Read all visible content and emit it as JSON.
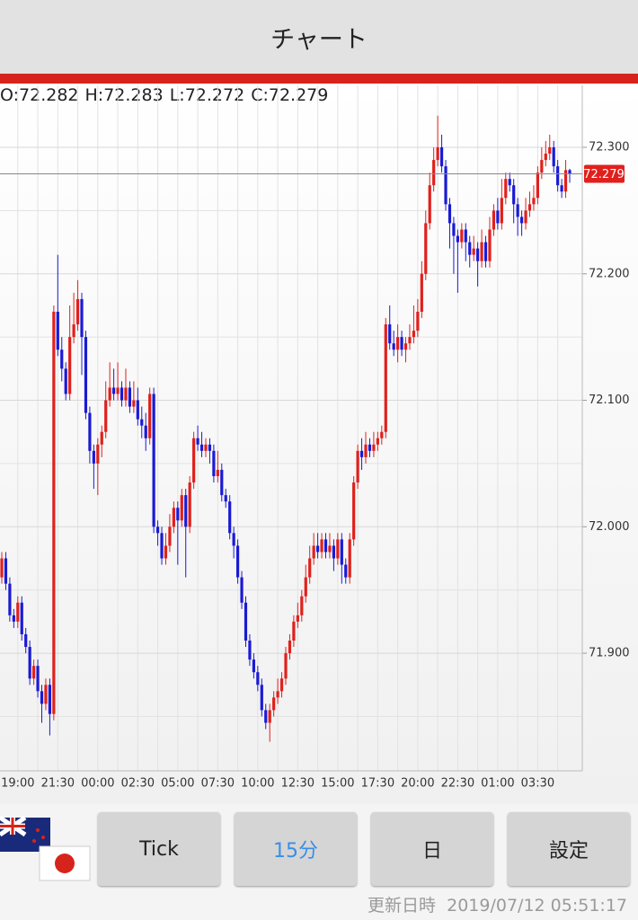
{
  "header": {
    "title": "チャート"
  },
  "chart_data": {
    "type": "candlestick",
    "ohlc_labels": [
      "O:",
      "H:",
      "L:",
      "C:"
    ],
    "up_color": "#e0201c",
    "down_color": "#1a1ad6",
    "categories": [
      null,
      null,
      null,
      null,
      "19:00",
      null,
      null,
      null,
      null,
      null,
      null,
      null,
      null,
      null,
      "21:30",
      null,
      null,
      null,
      null,
      null,
      null,
      null,
      null,
      null,
      "00:00",
      null,
      null,
      null,
      null,
      null,
      null,
      null,
      null,
      null,
      "02:30",
      null,
      null,
      null,
      null,
      null,
      null,
      null,
      null,
      null,
      "05:00",
      null,
      null,
      null,
      null,
      null,
      null,
      null,
      null,
      null,
      "07:30",
      null,
      null,
      null,
      null,
      null,
      null,
      null,
      null,
      null,
      "10:00",
      null,
      null,
      null,
      null,
      null,
      null,
      null,
      null,
      null,
      "12:30",
      null,
      null,
      null,
      null,
      null,
      null,
      null,
      null,
      null,
      "15:00",
      null,
      null,
      null,
      null,
      null,
      null,
      null,
      null,
      null,
      "17:30",
      null,
      null,
      null,
      null,
      null,
      null,
      null,
      null,
      null,
      "20:00",
      null,
      null,
      null,
      null,
      null,
      null,
      null,
      null,
      null,
      "22:30",
      null,
      null,
      null,
      null,
      null,
      null,
      null,
      null,
      null,
      "01:00",
      null,
      null,
      null,
      null,
      null,
      null,
      null,
      null,
      null,
      "03:30",
      null,
      null,
      null,
      null,
      null,
      null,
      null,
      null
    ],
    "open": [
      71.96,
      71.975,
      71.955,
      71.93,
      71.925,
      71.94,
      71.915,
      71.905,
      71.88,
      71.89,
      71.87,
      71.86,
      71.875,
      71.852,
      72.17,
      72.14,
      72.125,
      72.105,
      72.15,
      72.16,
      72.18,
      72.15,
      72.09,
      72.06,
      72.05,
      72.065,
      72.075,
      72.1,
      72.11,
      72.105,
      72.11,
      72.1,
      72.11,
      72.095,
      72.1,
      72.085,
      72.08,
      72.07,
      72.105,
      72.0,
      71.995,
      71.975,
      71.985,
      72.0,
      72.015,
      72.005,
      72.025,
      72.0,
      72.035,
      72.07,
      72.065,
      72.06,
      72.065,
      72.06,
      72.04,
      72.045,
      72.025,
      72.02,
      71.995,
      71.985,
      71.96,
      71.94,
      71.91,
      71.895,
      71.885,
      71.875,
      71.855,
      71.845,
      71.855,
      71.865,
      71.87,
      71.88,
      71.9,
      71.91,
      71.925,
      71.93,
      71.945,
      71.96,
      71.975,
      71.985,
      71.98,
      71.99,
      71.98,
      71.985,
      71.975,
      71.99,
      71.97,
      71.96,
      71.99,
      72.035,
      72.06,
      72.055,
      72.065,
      72.06,
      72.065,
      72.07,
      72.075,
      72.16,
      72.145,
      72.14,
      72.15,
      72.14,
      72.145,
      72.15,
      72.155,
      72.17,
      72.2,
      72.24,
      72.27,
      72.29,
      72.3,
      72.285,
      72.255,
      72.24,
      72.23,
      72.225,
      72.235,
      72.225,
      72.215,
      72.22,
      72.21,
      72.225,
      72.21,
      72.235,
      72.25,
      72.24,
      72.26,
      72.275,
      72.27,
      72.255,
      72.245,
      72.24,
      72.25,
      72.255,
      72.26,
      72.28,
      72.29,
      72.295,
      72.3,
      72.285,
      72.27,
      72.265,
      72.282
    ],
    "high": [
      71.98,
      71.98,
      71.96,
      71.935,
      71.945,
      71.945,
      71.92,
      71.91,
      71.895,
      71.895,
      71.875,
      71.88,
      71.88,
      72.175,
      72.215,
      72.15,
      72.13,
      72.175,
      72.185,
      72.195,
      72.185,
      72.155,
      72.095,
      72.065,
      72.07,
      72.08,
      72.115,
      72.13,
      72.125,
      72.13,
      72.115,
      72.125,
      72.115,
      72.115,
      72.11,
      72.095,
      72.09,
      72.11,
      72.11,
      72.005,
      72.0,
      71.995,
      72.01,
      72.02,
      72.02,
      72.03,
      72.03,
      72.04,
      72.075,
      72.08,
      72.075,
      72.07,
      72.07,
      72.065,
      72.06,
      72.05,
      72.03,
      72.025,
      72.0,
      71.99,
      71.965,
      71.945,
      71.915,
      71.9,
      71.89,
      71.88,
      71.86,
      71.86,
      71.87,
      71.88,
      71.885,
      71.905,
      71.915,
      71.93,
      71.94,
      71.95,
      71.97,
      71.985,
      71.995,
      71.995,
      71.995,
      71.995,
      71.995,
      71.99,
      71.995,
      71.995,
      71.975,
      71.995,
      72.04,
      72.065,
      72.07,
      72.075,
      72.07,
      72.075,
      72.075,
      72.08,
      72.165,
      72.175,
      72.155,
      72.16,
      72.155,
      72.15,
      72.16,
      72.175,
      72.18,
      72.21,
      72.25,
      72.28,
      72.3,
      72.325,
      72.31,
      72.29,
      72.26,
      72.245,
      72.235,
      72.24,
      72.24,
      72.23,
      72.23,
      72.225,
      72.235,
      72.23,
      72.245,
      72.255,
      72.26,
      72.275,
      72.28,
      72.28,
      72.275,
      72.26,
      72.25,
      72.26,
      72.265,
      72.27,
      72.285,
      72.3,
      72.305,
      72.31,
      72.305,
      72.29,
      72.275,
      72.29,
      72.283
    ],
    "low": [
      71.955,
      71.95,
      71.925,
      71.92,
      71.92,
      71.91,
      71.9,
      71.875,
      71.875,
      71.865,
      71.845,
      71.855,
      71.835,
      71.847,
      72.135,
      72.115,
      72.1,
      72.1,
      72.145,
      72.155,
      72.12,
      72.085,
      72.05,
      72.03,
      72.025,
      72.055,
      72.07,
      72.095,
      72.1,
      72.1,
      72.095,
      72.095,
      72.09,
      72.09,
      72.08,
      72.07,
      72.06,
      72.065,
      71.995,
      71.985,
      71.97,
      71.97,
      71.98,
      71.995,
      71.97,
      72.0,
      71.96,
      71.995,
      72.03,
      72.06,
      72.055,
      72.055,
      72.05,
      72.035,
      72.035,
      72.02,
      72.015,
      71.99,
      71.975,
      71.955,
      71.935,
      71.905,
      71.89,
      71.88,
      71.87,
      71.85,
      71.84,
      71.83,
      71.85,
      71.86,
      71.865,
      71.875,
      71.895,
      71.905,
      71.92,
      71.925,
      71.94,
      71.955,
      71.97,
      71.975,
      71.975,
      71.975,
      71.975,
      71.965,
      71.97,
      71.955,
      71.955,
      71.955,
      71.985,
      72.03,
      72.045,
      72.05,
      72.055,
      72.055,
      72.06,
      72.065,
      72.07,
      72.14,
      72.135,
      72.13,
      72.135,
      72.13,
      72.14,
      72.145,
      72.15,
      72.165,
      72.195,
      72.235,
      72.265,
      72.285,
      72.28,
      72.25,
      72.22,
      72.2,
      72.185,
      72.22,
      72.21,
      72.205,
      72.21,
      72.19,
      72.205,
      72.205,
      72.205,
      72.23,
      72.235,
      72.235,
      72.255,
      72.265,
      72.24,
      72.23,
      72.23,
      72.235,
      72.245,
      72.25,
      72.255,
      72.275,
      72.285,
      72.29,
      72.28,
      72.265,
      72.26,
      72.26,
      72.272
    ],
    "close": [
      71.975,
      71.955,
      71.93,
      71.925,
      71.94,
      71.915,
      71.905,
      71.88,
      71.89,
      71.87,
      71.86,
      71.875,
      71.852,
      72.17,
      72.14,
      72.125,
      72.105,
      72.15,
      72.16,
      72.18,
      72.15,
      72.09,
      72.06,
      72.05,
      72.065,
      72.075,
      72.1,
      72.11,
      72.105,
      72.11,
      72.1,
      72.11,
      72.095,
      72.1,
      72.085,
      72.08,
      72.07,
      72.105,
      72.0,
      71.995,
      71.975,
      71.985,
      72.0,
      72.015,
      72.005,
      72.025,
      72.0,
      72.035,
      72.07,
      72.065,
      72.06,
      72.065,
      72.06,
      72.04,
      72.045,
      72.025,
      72.02,
      71.995,
      71.985,
      71.96,
      71.94,
      71.91,
      71.895,
      71.885,
      71.875,
      71.855,
      71.845,
      71.855,
      71.865,
      71.87,
      71.88,
      71.9,
      71.91,
      71.925,
      71.93,
      71.945,
      71.96,
      71.975,
      71.985,
      71.98,
      71.99,
      71.98,
      71.985,
      71.975,
      71.99,
      71.97,
      71.96,
      71.99,
      72.035,
      72.06,
      72.055,
      72.065,
      72.06,
      72.065,
      72.07,
      72.075,
      72.16,
      72.145,
      72.14,
      72.15,
      72.14,
      72.145,
      72.15,
      72.155,
      72.17,
      72.2,
      72.24,
      72.27,
      72.29,
      72.3,
      72.285,
      72.255,
      72.24,
      72.23,
      72.225,
      72.235,
      72.225,
      72.215,
      72.22,
      72.21,
      72.225,
      72.21,
      72.235,
      72.25,
      72.24,
      72.26,
      72.275,
      72.27,
      72.255,
      72.245,
      72.24,
      72.25,
      72.255,
      72.26,
      72.28,
      72.29,
      72.295,
      72.3,
      72.285,
      72.27,
      72.265,
      72.282,
      72.279
    ],
    "ylim": [
      71.807,
      72.349
    ],
    "yticks": [
      {
        "value": 71.9,
        "label": "71.900"
      },
      {
        "value": 72.0,
        "label": "72.000"
      },
      {
        "value": 72.1,
        "label": "72.100"
      },
      {
        "value": 72.2,
        "label": "72.200"
      },
      {
        "value": 72.3,
        "label": "72.300"
      }
    ],
    "y_minor_grid": [
      71.85,
      71.95,
      72.05,
      72.15,
      72.25
    ],
    "grid": true
  },
  "buttons": [
    "Tick",
    "15分",
    "日",
    "設定"
  ],
  "footer": {
    "label": "更新日時",
    "timestamp": "2019/07/12 05:51:17"
  }
}
